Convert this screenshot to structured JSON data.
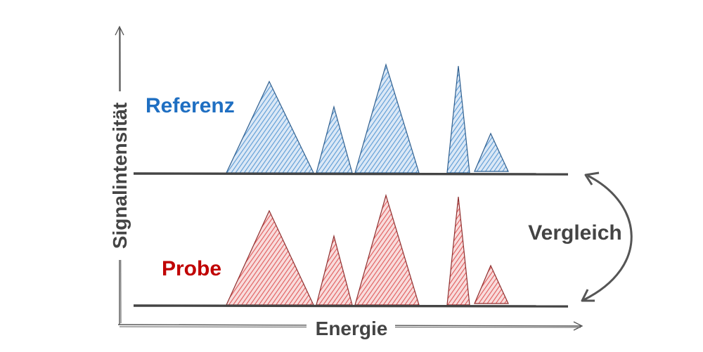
{
  "labels": {
    "y_axis": "Signalintensität",
    "x_axis": "Energie",
    "reference": "Referenz",
    "sample": "Probe",
    "compare": "Vergleich"
  },
  "colors": {
    "reference": "#1f6fc2",
    "reference_fill": "#6fa8dc",
    "sample": "#c00000",
    "sample_fill": "#e06666",
    "ink": "#444444"
  }
}
